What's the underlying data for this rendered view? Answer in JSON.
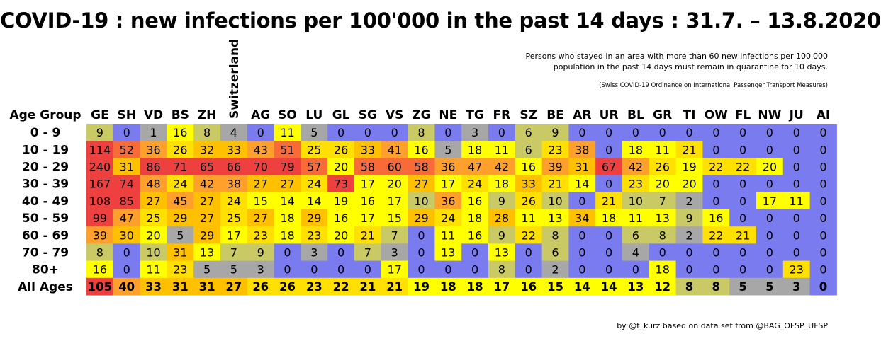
{
  "title": "COVID-19 : new infections per 100'000 in the past 14 days : 31.7. – 13.8.2020",
  "note_line1": "Persons who stayed in an area with more than 60 new infections per 100'000",
  "note_line2": "population in the past 14 days must remain in quarantine for 10 days.",
  "note_source": "(Swiss COVID-19 Ordinance on International Passenger Transport Measures)",
  "credit": "by @t_kurz based on data set from @BAG_OFSP_UFSP",
  "colors": {
    "blue": "#7b7bf0",
    "gray": "#a7a7a7",
    "olive": "#c9c966",
    "yellow": "#ffff00",
    "yellow_orange": "#ffe000",
    "orange": "#ffc000",
    "orange_dark": "#ff9f2c",
    "red_orange": "#f86b38",
    "red": "#ef4040"
  },
  "chart_data": {
    "type": "heatmap",
    "title": "COVID-19 : new infections per 100'000 in the past 14 days : 31.7. – 13.8.2020",
    "row_header": "Age Group",
    "columns": [
      "GE",
      "SH",
      "VD",
      "BS",
      "ZH",
      "Switzerland",
      "AG",
      "SO",
      "LU",
      "GL",
      "SG",
      "VS",
      "ZG",
      "NE",
      "TG",
      "FR",
      "SZ",
      "BE",
      "AR",
      "UR",
      "BL",
      "GR",
      "TI",
      "OW",
      "FL",
      "NW",
      "JU",
      "AI"
    ],
    "rows": [
      "0 - 9",
      "10 - 19",
      "20 - 29",
      "30 - 39",
      "40 - 49",
      "50 - 59",
      "60 - 69",
      "70 - 79",
      "80+",
      "All Ages"
    ],
    "values": [
      [
        9,
        0,
        1,
        16,
        8,
        4,
        0,
        11,
        5,
        0,
        0,
        0,
        8,
        0,
        3,
        0,
        6,
        9,
        0,
        0,
        0,
        0,
        0,
        0,
        0,
        0,
        0,
        0
      ],
      [
        114,
        52,
        36,
        26,
        32,
        33,
        43,
        51,
        25,
        26,
        33,
        41,
        16,
        5,
        18,
        11,
        6,
        23,
        38,
        0,
        18,
        11,
        21,
        0,
        0,
        0,
        0,
        0
      ],
      [
        240,
        31,
        86,
        71,
        65,
        66,
        70,
        79,
        57,
        20,
        58,
        60,
        58,
        36,
        47,
        42,
        16,
        39,
        31,
        67,
        42,
        26,
        19,
        22,
        22,
        20,
        0,
        0
      ],
      [
        167,
        74,
        48,
        24,
        42,
        38,
        27,
        27,
        24,
        73,
        17,
        20,
        27,
        17,
        24,
        18,
        33,
        21,
        14,
        0,
        23,
        20,
        20,
        0,
        0,
        0,
        0,
        0
      ],
      [
        108,
        85,
        27,
        45,
        27,
        24,
        15,
        14,
        14,
        19,
        16,
        17,
        10,
        36,
        16,
        9,
        26,
        10,
        0,
        21,
        10,
        7,
        2,
        0,
        0,
        17,
        11,
        0
      ],
      [
        99,
        47,
        25,
        29,
        27,
        25,
        27,
        18,
        29,
        16,
        17,
        15,
        29,
        24,
        18,
        28,
        11,
        13,
        34,
        18,
        11,
        13,
        9,
        16,
        0,
        0,
        0,
        0
      ],
      [
        39,
        30,
        20,
        5,
        29,
        17,
        23,
        18,
        23,
        20,
        21,
        7,
        0,
        11,
        16,
        9,
        22,
        8,
        0,
        0,
        6,
        8,
        2,
        22,
        21,
        0,
        0,
        0
      ],
      [
        8,
        0,
        10,
        31,
        13,
        7,
        9,
        0,
        3,
        0,
        7,
        3,
        0,
        13,
        0,
        13,
        0,
        6,
        0,
        0,
        4,
        0,
        0,
        0,
        0,
        0,
        0,
        0
      ],
      [
        16,
        0,
        11,
        23,
        5,
        5,
        3,
        0,
        0,
        0,
        0,
        17,
        0,
        0,
        0,
        8,
        0,
        2,
        0,
        0,
        0,
        18,
        0,
        0,
        0,
        0,
        23,
        0
      ],
      [
        105,
        40,
        33,
        31,
        31,
        27,
        26,
        26,
        23,
        22,
        21,
        21,
        19,
        18,
        18,
        17,
        16,
        15,
        14,
        14,
        13,
        12,
        8,
        8,
        5,
        5,
        3,
        0
      ]
    ],
    "grid": false
  }
}
